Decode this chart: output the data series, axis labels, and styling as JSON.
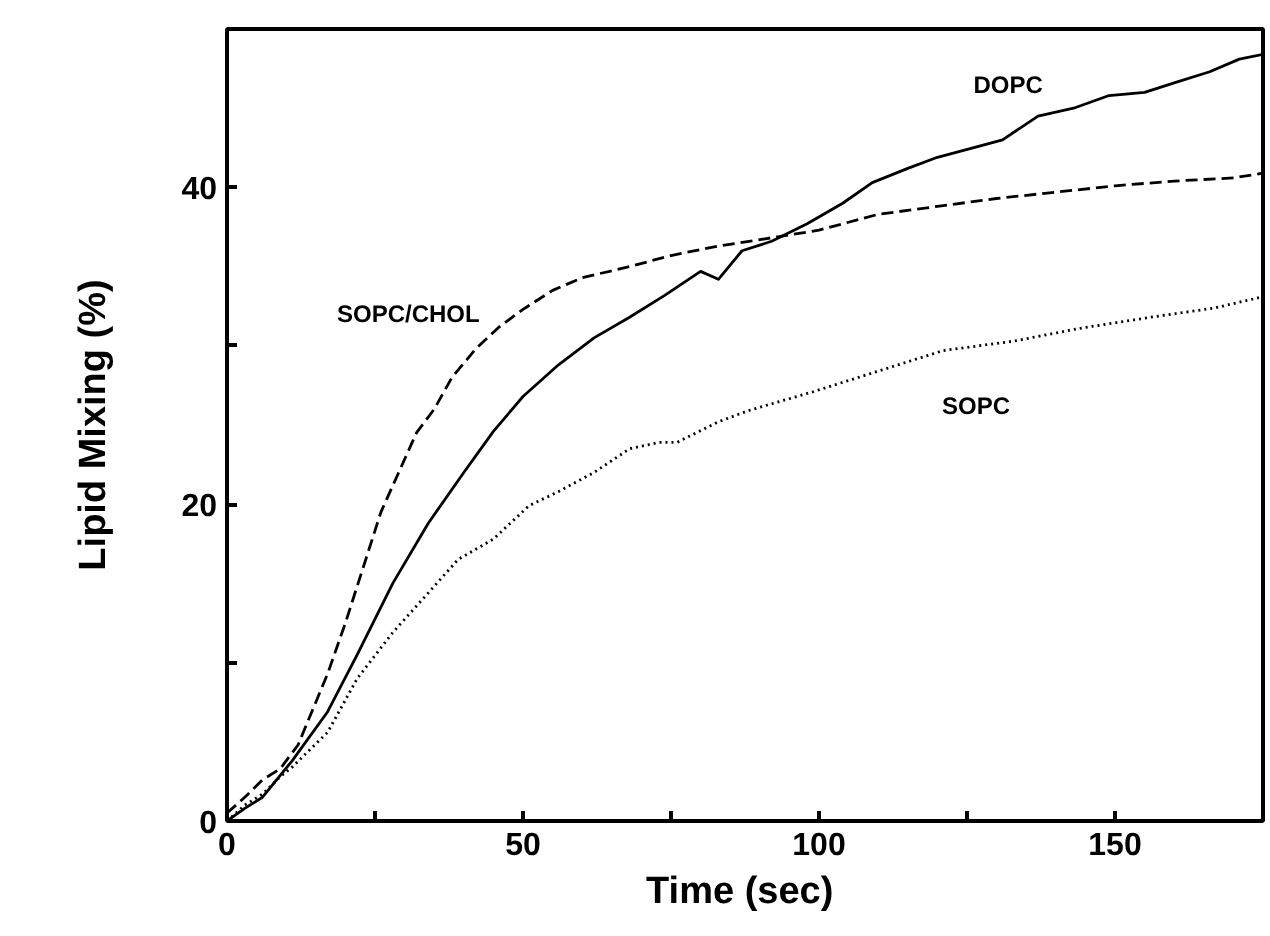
{
  "chart_data": {
    "type": "line",
    "xlabel": "Time  (sec)",
    "ylabel": "Lipid Mixing (%)",
    "xlim": [
      0,
      175
    ],
    "ylim": [
      0,
      50
    ],
    "xticks": [
      0,
      {
        "value": 25,
        "label": null
      },
      50,
      {
        "value": 75,
        "label": null
      },
      100,
      {
        "value": 125,
        "label": null
      },
      150,
      {
        "value": 175,
        "label": null
      }
    ],
    "yticks": [
      0,
      {
        "value": 10,
        "label": null
      },
      20,
      {
        "value": 30,
        "label": null
      },
      40,
      {
        "value": 50,
        "label": null
      }
    ],
    "grid": false,
    "marker": "none",
    "series": [
      {
        "name": "SOPC/CHOL",
        "color": "#000000",
        "line_style": "dashed",
        "x": [
          0,
          3,
          6,
          9,
          12,
          15,
          17,
          20,
          23,
          26,
          29,
          32,
          35,
          38,
          42,
          46,
          50,
          55,
          60,
          68,
          75,
          83,
          90,
          100,
          110,
          120,
          130,
          140,
          150,
          160,
          170,
          175
        ],
        "values": [
          0.5,
          1.5,
          2.6,
          3.3,
          4.8,
          7.5,
          9.3,
          12.5,
          16,
          19.5,
          22,
          24.5,
          26,
          28,
          29.8,
          31.2,
          32.3,
          33.5,
          34.3,
          35,
          35.7,
          36.3,
          36.7,
          37.3,
          38.3,
          38.8,
          39.3,
          39.7,
          40.1,
          40.4,
          40.6,
          40.9
        ]
      },
      {
        "name": "DOPC",
        "color": "#000000",
        "line_style": "solid",
        "x": [
          0,
          3,
          6,
          11,
          17,
          22,
          28,
          34,
          40,
          45,
          50,
          56,
          62,
          68,
          74,
          80,
          83,
          87,
          92,
          98,
          104,
          109,
          115,
          120,
          126,
          131,
          137,
          143,
          149,
          155,
          160,
          166,
          171,
          175
        ],
        "values": [
          0,
          0.8,
          1.5,
          3.8,
          6.9,
          10.5,
          15,
          18.8,
          22,
          24.6,
          26.8,
          28.8,
          30.5,
          31.8,
          33.2,
          34.7,
          34.2,
          36,
          36.6,
          37.7,
          39,
          40.3,
          41.2,
          41.9,
          42.5,
          43,
          44.5,
          45,
          45.8,
          46,
          46.6,
          47.3,
          48.1,
          48.4
        ]
      },
      {
        "name": "SOPC",
        "color": "#000000",
        "line_style": "dotted",
        "x": [
          0,
          3,
          6,
          9,
          11,
          17,
          22,
          28,
          34,
          39,
          45,
          51,
          56,
          62,
          68,
          73,
          76,
          83,
          88,
          99,
          110,
          121,
          133,
          144,
          156,
          167,
          175
        ],
        "values": [
          0,
          1,
          1.7,
          2.8,
          3.4,
          5.6,
          9,
          11.9,
          14.4,
          16.5,
          17.8,
          19.9,
          20.8,
          22,
          23.5,
          23.9,
          23.9,
          25.2,
          25.9,
          27.1,
          28.4,
          29.7,
          30.3,
          31.1,
          31.8,
          32.4,
          33.1
        ]
      }
    ]
  }
}
